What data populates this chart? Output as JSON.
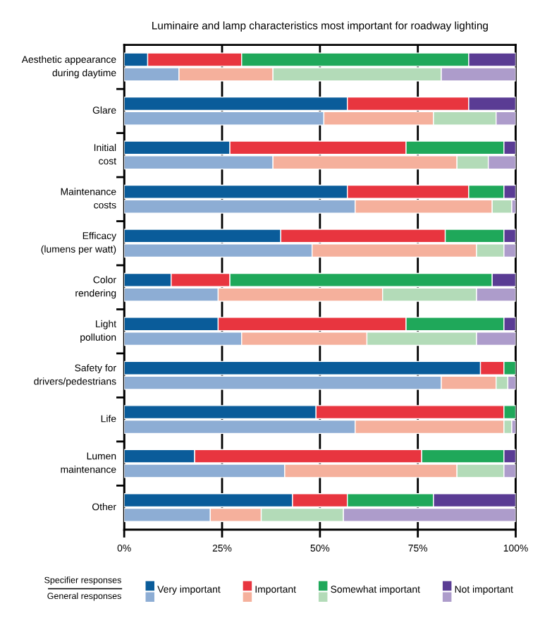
{
  "chart_data": {
    "type": "bar",
    "orientation": "horizontal",
    "stacked": true,
    "title": "Luminaire and lamp characteristics most important for roadway lighting",
    "categories": [
      "Aesthetic appearance\nduring daytime",
      null,
      null,
      "Glare",
      null,
      null,
      "Initial\ncost",
      null,
      null,
      "Maintenance\ncosts",
      null,
      null,
      "Efficacy\n(lumens per watt)",
      null,
      null,
      "Color\nrendering",
      null,
      null,
      "Light\npollution",
      null,
      null,
      "Safety for\ndrivers/pedestrians",
      null,
      null,
      "Life",
      null,
      null,
      "Lumen\nmaintenance",
      null,
      null,
      "Other",
      null
    ],
    "series": [
      {
        "name": "Very important",
        "color": "#0a5c9a",
        "values": [
          6,
          null,
          null,
          57,
          null,
          null,
          27,
          null,
          null,
          57,
          null,
          null,
          40,
          null,
          null,
          12,
          null,
          null,
          24,
          null,
          null,
          91,
          null,
          null,
          49,
          null,
          null,
          18,
          null,
          null,
          43,
          null
        ]
      },
      {
        "name": "Important",
        "color": "#e8353f",
        "values": [
          24,
          null,
          null,
          31,
          null,
          null,
          45,
          null,
          null,
          31,
          null,
          null,
          42,
          null,
          null,
          15,
          null,
          null,
          48,
          null,
          null,
          6,
          null,
          null,
          48,
          null,
          null,
          58,
          null,
          null,
          14,
          null
        ]
      },
      {
        "name": "Somewhat important",
        "color": "#1fa85a",
        "values": [
          58,
          null,
          null,
          null,
          null,
          null,
          25,
          null,
          null,
          9,
          null,
          null,
          15,
          null,
          null,
          67,
          null,
          null,
          25,
          null,
          null,
          3,
          null,
          null,
          3,
          null,
          null,
          21,
          null,
          null,
          22,
          null
        ]
      },
      {
        "name": "Not important",
        "color": "#5a3c94",
        "values": [
          12,
          null,
          null,
          12,
          null,
          null,
          3,
          null,
          null,
          3,
          null,
          null,
          3,
          null,
          null,
          6,
          null,
          null,
          3,
          null,
          null,
          null,
          null,
          null,
          null,
          null,
          null,
          3,
          null,
          null,
          21,
          null
        ]
      },
      {
        "color": "#8dadd4",
        "values": [
          null,
          14,
          null,
          null,
          51,
          null,
          null,
          38,
          null,
          null,
          59,
          null,
          null,
          48,
          null,
          null,
          24,
          null,
          null,
          30,
          null,
          null,
          81,
          null,
          null,
          59,
          null,
          null,
          41,
          null,
          null,
          22
        ]
      },
      {
        "color": "#f5b09c",
        "values": [
          null,
          24,
          null,
          null,
          28,
          null,
          null,
          47,
          null,
          null,
          35,
          null,
          null,
          42,
          null,
          null,
          42,
          null,
          null,
          32,
          null,
          null,
          14,
          null,
          null,
          38,
          null,
          null,
          44,
          null,
          null,
          13
        ]
      },
      {
        "color": "#b3dbb8",
        "values": [
          null,
          43,
          null,
          null,
          16,
          null,
          null,
          8,
          null,
          null,
          5,
          null,
          null,
          7,
          null,
          null,
          24,
          null,
          null,
          28,
          null,
          null,
          3,
          null,
          null,
          2,
          null,
          null,
          12,
          null,
          null,
          21
        ]
      },
      {
        "color": "#ad9ccb",
        "values": [
          null,
          19,
          null,
          null,
          5,
          null,
          null,
          7,
          null,
          null,
          1,
          null,
          null,
          3,
          null,
          null,
          10,
          null,
          null,
          10,
          null,
          null,
          2,
          null,
          null,
          1,
          null,
          null,
          3,
          null,
          null,
          44
        ]
      }
    ],
    "xlim": [
      0,
      100
    ],
    "xticks": [
      {
        "value": 0,
        "label": "0%"
      },
      {
        "value": 25,
        "label": "25%"
      },
      {
        "value": 50,
        "label": "50%"
      },
      {
        "value": 75,
        "label": "75%"
      },
      {
        "value": 100,
        "label": "100%"
      }
    ],
    "grid": "x",
    "legend": "bottom",
    "annotations": [
      "Specifier responses",
      "General responses"
    ]
  }
}
